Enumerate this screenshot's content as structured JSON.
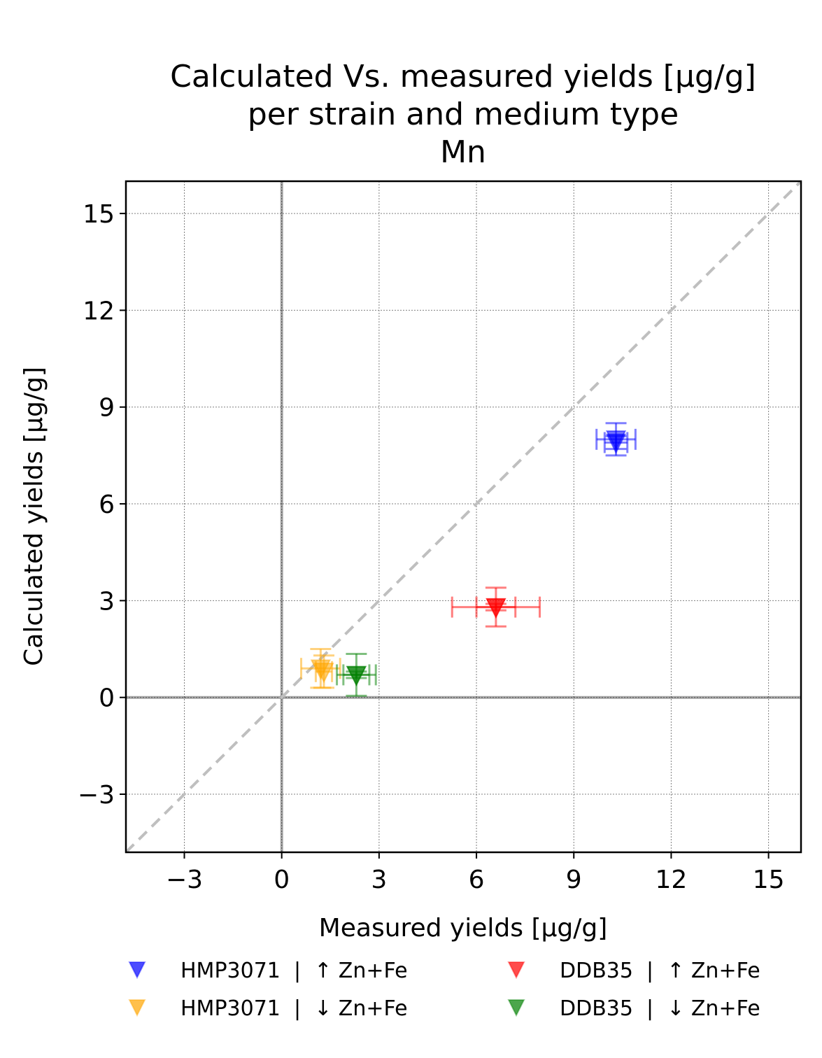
{
  "chart_data": {
    "type": "scatter",
    "title_lines": [
      "Calculated Vs. measured yields [µg/g]",
      "per strain and medium type",
      "Mn"
    ],
    "xlabel": "Measured yields [µg/g]",
    "ylabel": "Calculated yields [µg/g]",
    "xlim": [
      -4.8,
      16
    ],
    "ylim": [
      -4.8,
      16
    ],
    "xticks": [
      -3,
      0,
      3,
      6,
      9,
      12,
      15
    ],
    "yticks": [
      -3,
      0,
      3,
      6,
      9,
      12,
      15
    ],
    "xtick_labels": [
      "−3",
      "0",
      "3",
      "6",
      "9",
      "12",
      "15"
    ],
    "ytick_labels": [
      "−3",
      "0",
      "3",
      "6",
      "9",
      "12",
      "15"
    ],
    "grid": true,
    "reference_line": "y = x (dashed)",
    "legend_position": "bottom",
    "series": [
      {
        "name": "HMP3071  |  ↑ Zn+Fe",
        "color": "#0000ff",
        "marker": "down-triangle",
        "points": [
          {
            "x": 10.3,
            "y": 7.9,
            "xerr": 0.35,
            "yerr": 0.2
          },
          {
            "x": 10.3,
            "y": 8.0,
            "xerr": 0.6,
            "yerr": 0.5
          }
        ]
      },
      {
        "name": "HMP3071  |  ↓ Zn+Fe",
        "color": "#ffa500",
        "marker": "down-triangle",
        "points": [
          {
            "x": 1.2,
            "y": 0.9,
            "xerr": 0.6,
            "yerr": 0.6
          },
          {
            "x": 1.3,
            "y": 0.8,
            "xerr": 0.25,
            "yerr": 0.5
          }
        ]
      },
      {
        "name": "DDB35  |  ↑ Zn+Fe",
        "color": "#ff0000",
        "marker": "down-triangle",
        "points": [
          {
            "x": 6.6,
            "y": 2.8,
            "xerr": 1.35,
            "yerr": 0.6
          },
          {
            "x": 6.6,
            "y": 2.8,
            "xerr": 0.6,
            "yerr": 0.1
          }
        ]
      },
      {
        "name": "DDB35  |  ↓ Zn+Fe",
        "color": "#008000",
        "marker": "down-triangle",
        "points": [
          {
            "x": 2.3,
            "y": 0.7,
            "xerr": 0.6,
            "yerr": 0.65
          },
          {
            "x": 2.3,
            "y": 0.7,
            "xerr": 0.4,
            "yerr": 0.1
          }
        ]
      }
    ]
  }
}
